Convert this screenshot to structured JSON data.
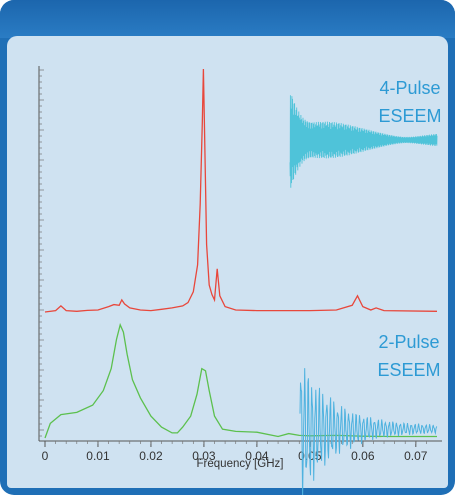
{
  "colors": {
    "frame": "#1f6fb6",
    "panel": "#cfe2f1",
    "four_pulse_trace": "#e8473b",
    "two_pulse_trace": "#5cc04e",
    "four_pulse_inset": "#4fc3d9",
    "two_pulse_inset": "#4fb2df",
    "annotation_text": "#2d9ad4"
  },
  "chart_data": {
    "type": "line",
    "xlabel": "Frequency [GHz]",
    "ylabel": "",
    "xlim": [
      0,
      0.074
    ],
    "xticks": [
      0,
      0.01,
      0.02,
      0.03,
      0.04,
      0.05,
      0.06,
      0.07
    ],
    "xtick_labels": [
      "0",
      "0.01",
      "0.02",
      "0.03",
      "0.04",
      "0.05",
      "0.06",
      "0.07"
    ],
    "grid": false,
    "annotations": [
      {
        "id": "four_pulse",
        "lines": [
          "4-Pulse",
          "ESEEM"
        ]
      },
      {
        "id": "two_pulse",
        "lines": [
          "2-Pulse",
          "ESEEM"
        ]
      }
    ],
    "series": [
      {
        "id": "four_pulse_spectrum",
        "color": "#e8473b",
        "points": [
          [
            0,
            0
          ],
          [
            0.002,
            0.1
          ],
          [
            0.003,
            0.45
          ],
          [
            0.004,
            0.1
          ],
          [
            0.006,
            0.05
          ],
          [
            0.008,
            0.12
          ],
          [
            0.01,
            0.15
          ],
          [
            0.012,
            0.4
          ],
          [
            0.013,
            0.55
          ],
          [
            0.014,
            0.5
          ],
          [
            0.0145,
            0.9
          ],
          [
            0.015,
            0.6
          ],
          [
            0.016,
            0.3
          ],
          [
            0.018,
            0.15
          ],
          [
            0.02,
            0.1
          ],
          [
            0.022,
            0.2
          ],
          [
            0.024,
            0.3
          ],
          [
            0.026,
            0.45
          ],
          [
            0.027,
            0.7
          ],
          [
            0.028,
            1.5
          ],
          [
            0.0288,
            3.5
          ],
          [
            0.0293,
            8
          ],
          [
            0.0297,
            14
          ],
          [
            0.0299,
            18
          ],
          [
            0.0301,
            14
          ],
          [
            0.0305,
            5
          ],
          [
            0.031,
            2
          ],
          [
            0.0315,
            1.3
          ],
          [
            0.032,
            0.9
          ],
          [
            0.0325,
            3.2
          ],
          [
            0.033,
            1.2
          ],
          [
            0.034,
            0.4
          ],
          [
            0.036,
            0.15
          ],
          [
            0.04,
            0.1
          ],
          [
            0.045,
            0.1
          ],
          [
            0.05,
            0.1
          ],
          [
            0.055,
            0.15
          ],
          [
            0.058,
            0.5
          ],
          [
            0.059,
            1.2
          ],
          [
            0.06,
            0.4
          ],
          [
            0.0615,
            0.15
          ],
          [
            0.0625,
            0.3
          ],
          [
            0.064,
            0.1
          ],
          [
            0.074,
            0.05
          ]
        ]
      },
      {
        "id": "two_pulse_spectrum",
        "color": "#5cc04e",
        "points": [
          [
            0,
            0
          ],
          [
            0.001,
            2
          ],
          [
            0.003,
            3.2
          ],
          [
            0.006,
            3.5
          ],
          [
            0.009,
            4.5
          ],
          [
            0.011,
            6.5
          ],
          [
            0.0125,
            9.5
          ],
          [
            0.0135,
            13.5
          ],
          [
            0.0142,
            15.5
          ],
          [
            0.0148,
            14.5
          ],
          [
            0.0155,
            11.5
          ],
          [
            0.0165,
            8
          ],
          [
            0.018,
            5.5
          ],
          [
            0.02,
            3
          ],
          [
            0.022,
            1.5
          ],
          [
            0.024,
            0.7
          ],
          [
            0.025,
            0.7
          ],
          [
            0.026,
            1.5
          ],
          [
            0.0275,
            3
          ],
          [
            0.0287,
            6
          ],
          [
            0.0296,
            9.5
          ],
          [
            0.0303,
            9.2
          ],
          [
            0.031,
            6.5
          ],
          [
            0.032,
            3
          ],
          [
            0.0335,
            1.2
          ],
          [
            0.036,
            0.9
          ],
          [
            0.04,
            0.8
          ],
          [
            0.044,
            0.2
          ],
          [
            0.046,
            0.6
          ],
          [
            0.048,
            0.35
          ],
          [
            0.05,
            0.3
          ],
          [
            0.055,
            0.35
          ],
          [
            0.06,
            0.25
          ],
          [
            0.065,
            0.2
          ],
          [
            0.074,
            0.2
          ]
        ]
      }
    ]
  }
}
